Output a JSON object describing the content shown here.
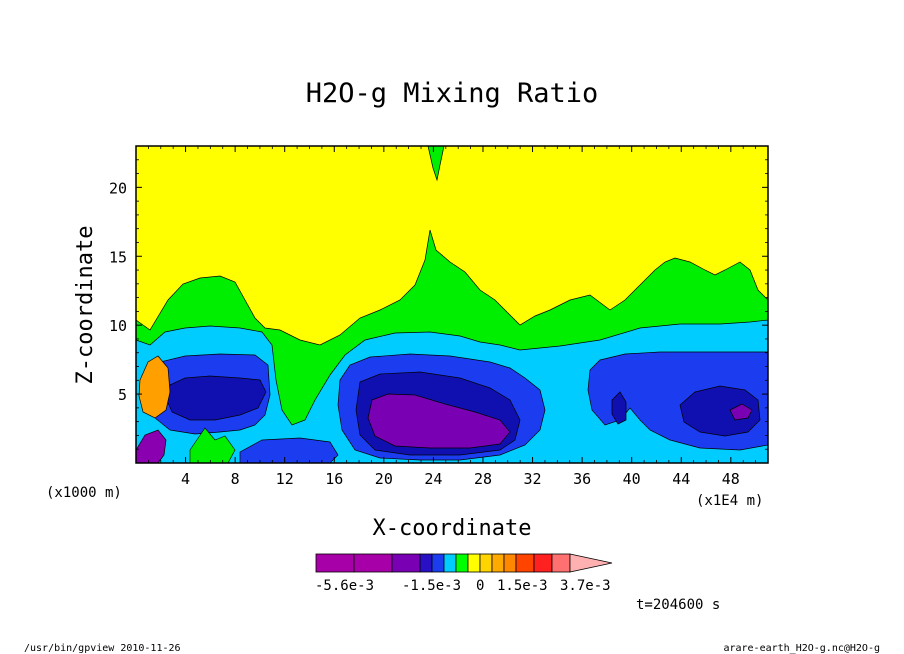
{
  "chart_data": {
    "type": "heatmap",
    "title": "H2O-g Mixing Ratio",
    "xlabel": "X-coordinate",
    "ylabel": "Z-coordinate",
    "x_unit_left": "(x1000 m)",
    "x_unit_right": "(x1E4 m)",
    "x_ticks": [
      4,
      8,
      12,
      16,
      20,
      24,
      28,
      32,
      36,
      40,
      44,
      48
    ],
    "y_ticks": [
      5,
      10,
      15,
      20
    ],
    "xlim": [
      0,
      51
    ],
    "ylim": [
      0,
      23
    ],
    "colorbar": {
      "colors": [
        "#a800a8",
        "#a800a8",
        "#7a00b4",
        "#2a10c4",
        "#1c3cf0",
        "#00ccff",
        "#00ff00",
        "#ffff00",
        "#ffd400",
        "#ffaa00",
        "#ff8800",
        "#ff4400",
        "#ff2020",
        "#ff7070",
        "#ffb0b0"
      ],
      "labels": [
        "-5.6e-3",
        "-1.5e-3",
        "0",
        "1.5e-3",
        "3.7e-3"
      ]
    },
    "regions": [
      {
        "level": "yellow",
        "color": "#ffff00",
        "description": "upper domain"
      },
      {
        "level": "green",
        "color": "#00ee00"
      },
      {
        "level": "cyan",
        "color": "#00ccff"
      },
      {
        "level": "blue",
        "color": "#1c3cf0"
      },
      {
        "level": "dark-blue",
        "color": "#1010b0"
      },
      {
        "level": "purple",
        "color": "#7a00b4"
      },
      {
        "level": "orange",
        "color": "#ffa000"
      }
    ],
    "time_label": "t=204600 s"
  },
  "footer": {
    "left": "/usr/bin/gpview  2010-11-26",
    "right": "arare-earth_H2O-g.nc@H2O-g"
  }
}
